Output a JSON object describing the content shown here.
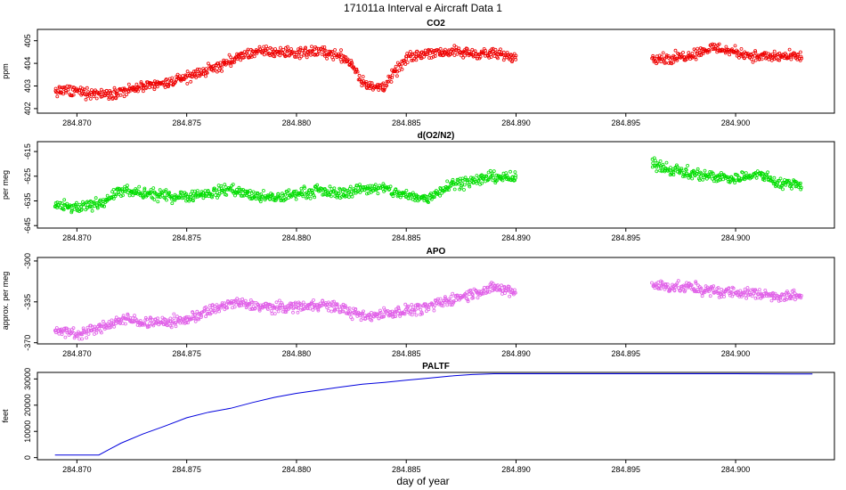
{
  "page": {
    "title": "171011a   Interval e Aircraft Data 1",
    "xlabel": "day of year"
  },
  "chart_data": [
    {
      "type": "scatter",
      "title": "CO2",
      "ylabel": "ppm",
      "color": "#ee0000",
      "xlim": [
        284.8682,
        284.9045
      ],
      "ylim": [
        401.8,
        405.5
      ],
      "xticks": [
        "284.870",
        "284.875",
        "284.880",
        "284.885",
        "284.890",
        "284.895",
        "284.900"
      ],
      "yticks": [
        402,
        403,
        404,
        405
      ],
      "segments": [
        {
          "x": [
            284.869,
            284.87,
            284.871,
            284.872,
            284.873,
            284.874,
            284.875,
            284.876,
            284.877,
            284.878,
            284.879,
            284.88,
            284.881,
            284.882,
            284.8825,
            284.883,
            284.8835,
            284.884,
            284.885,
            284.886,
            284.887,
            284.888,
            284.889,
            284.89
          ],
          "y": [
            402.8,
            402.75,
            402.65,
            402.75,
            402.95,
            403.1,
            403.4,
            403.7,
            404.1,
            404.5,
            404.5,
            404.45,
            404.55,
            404.35,
            404.0,
            403.2,
            402.9,
            403.0,
            404.2,
            404.5,
            404.5,
            404.45,
            404.4,
            404.3
          ]
        },
        {
          "x": [
            284.8962,
            284.897,
            284.898,
            284.899,
            284.9,
            284.901,
            284.902,
            284.903
          ],
          "y": [
            404.3,
            404.2,
            404.4,
            404.7,
            404.5,
            404.3,
            404.3,
            404.3
          ]
        }
      ]
    },
    {
      "type": "scatter",
      "title": "d(O2/N2)",
      "ylabel": "per meg",
      "color": "#00dd00",
      "xlim": [
        284.8682,
        284.9045
      ],
      "ylim": [
        -646,
        -611
      ],
      "xticks": [
        "284.870",
        "284.875",
        "284.880",
        "284.885",
        "284.890",
        "284.895",
        "284.900"
      ],
      "yticks": [
        -615,
        -625,
        -635,
        -645
      ],
      "segments": [
        {
          "x": [
            284.869,
            284.87,
            284.871,
            284.872,
            284.873,
            284.874,
            284.875,
            284.876,
            284.877,
            284.878,
            284.879,
            284.88,
            284.881,
            284.882,
            284.883,
            284.884,
            284.885,
            284.886,
            284.887,
            284.888,
            284.889,
            284.89
          ],
          "y": [
            -637,
            -638,
            -636,
            -631,
            -632,
            -633,
            -633,
            -632,
            -630,
            -633,
            -634,
            -632,
            -631,
            -632,
            -630,
            -630,
            -633,
            -634,
            -628,
            -627,
            -625,
            -626
          ]
        },
        {
          "x": [
            284.8962,
            284.897,
            284.898,
            284.899,
            284.9,
            284.901,
            284.902,
            284.903
          ],
          "y": [
            -620,
            -622,
            -624,
            -625,
            -626,
            -624,
            -628,
            -628
          ]
        }
      ]
    },
    {
      "type": "scatter",
      "title": "APO",
      "ylabel": "approx. per meg",
      "color": "#e060e8",
      "xlim": [
        284.8682,
        284.9045
      ],
      "ylim": [
        -371,
        -297
      ],
      "xticks": [
        "284.870",
        "284.875",
        "284.880",
        "284.885",
        "284.890",
        "284.895",
        "284.900"
      ],
      "yticks": [
        -300,
        -335,
        -370
      ],
      "segments": [
        {
          "x": [
            284.869,
            284.87,
            284.871,
            284.872,
            284.873,
            284.874,
            284.875,
            284.876,
            284.877,
            284.878,
            284.879,
            284.88,
            284.881,
            284.882,
            284.883,
            284.884,
            284.885,
            284.886,
            284.887,
            284.888,
            284.889,
            284.89
          ],
          "y": [
            -360,
            -362,
            -358,
            -350,
            -352,
            -353,
            -350,
            -343,
            -336,
            -338,
            -340,
            -339,
            -337,
            -340,
            -348,
            -345,
            -342,
            -340,
            -333,
            -328,
            -323,
            -327
          ]
        },
        {
          "x": [
            284.8962,
            284.897,
            284.898,
            284.899,
            284.9,
            284.901,
            284.902,
            284.903
          ],
          "y": [
            -320,
            -322,
            -323,
            -326,
            -327,
            -328,
            -330,
            -330
          ]
        }
      ]
    },
    {
      "type": "line",
      "title": "PALTF",
      "ylabel": "feet",
      "color": "#0000dd",
      "xlim": [
        284.8682,
        284.9045
      ],
      "ylim": [
        -800,
        32500
      ],
      "xticks": [
        "284.870",
        "284.875",
        "284.880",
        "284.885",
        "284.890",
        "284.895",
        "284.900"
      ],
      "yticks": [
        0,
        10000,
        20000,
        30000
      ],
      "x": [
        284.869,
        284.871,
        284.872,
        284.873,
        284.874,
        284.875,
        284.876,
        284.877,
        284.878,
        284.879,
        284.88,
        284.881,
        284.882,
        284.883,
        284.884,
        284.885,
        284.886,
        284.887,
        284.888,
        284.889,
        284.89,
        284.895,
        284.9,
        284.9035
      ],
      "y": [
        1000,
        1000,
        5500,
        9000,
        12000,
        15200,
        17300,
        18800,
        21000,
        23000,
        24500,
        25700,
        26900,
        28000,
        28700,
        29500,
        30300,
        31100,
        31700,
        32000,
        32000,
        32000,
        32000,
        31900
      ]
    }
  ]
}
